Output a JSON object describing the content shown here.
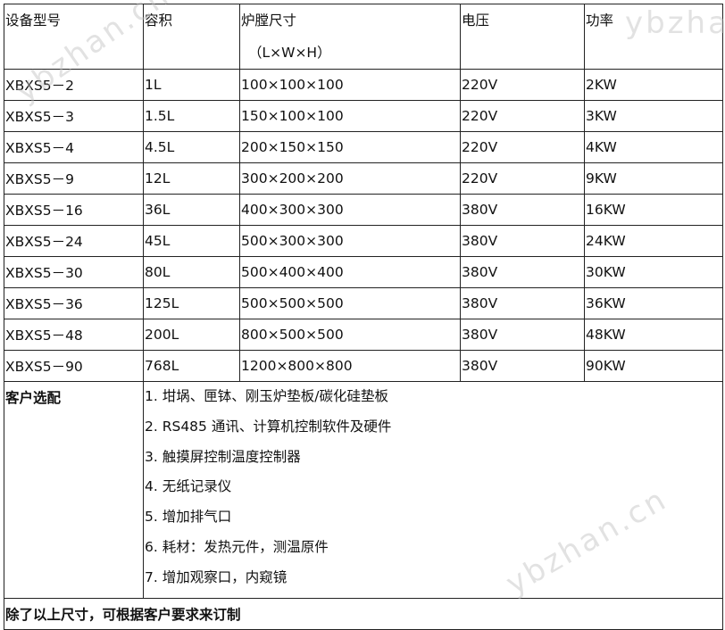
{
  "watermark": "ybzhan.cn",
  "header": {
    "model": "设备型号",
    "volume": "容积",
    "chamber": "炉膛尺寸",
    "chamber_sub": "（L×W×H）",
    "voltage": "电压",
    "power": "功率"
  },
  "rows": [
    {
      "model": "XBXS5－2",
      "volume": "1L",
      "size": "100×100×100",
      "voltage": "220V",
      "power": "2KW"
    },
    {
      "model": "XBXS5－3",
      "volume": "1.5L",
      "size": "150×100×100",
      "voltage": "220V",
      "power": "3KW"
    },
    {
      "model": "XBXS5－4",
      "volume": "4.5L",
      "size": "200×150×150",
      "voltage": "220V",
      "power": "4KW"
    },
    {
      "model": "XBXS5－9",
      "volume": "12L",
      "size": "300×200×200",
      "voltage": "220V",
      "power": "9KW"
    },
    {
      "model": "XBXS5－16",
      "volume": "36L",
      "size": "400×300×300",
      "voltage": "380V",
      "power": "16KW"
    },
    {
      "model": "XBXS5－24",
      "volume": "45L",
      "size": "500×300×300",
      "voltage": "380V",
      "power": "24KW"
    },
    {
      "model": "XBXS5－30",
      "volume": "80L",
      "size": "500×400×400",
      "voltage": "380V",
      "power": "30KW"
    },
    {
      "model": "XBXS5－36",
      "volume": "125L",
      "size": "500×500×500",
      "voltage": "380V",
      "power": "36KW"
    },
    {
      "model": "XBXS5－48",
      "volume": "200L",
      "size": "800×500×500",
      "voltage": "380V",
      "power": "48KW"
    },
    {
      "model": "XBXS5－90",
      "volume": "768L",
      "size": "1200×800×800",
      "voltage": "380V",
      "power": "90KW"
    }
  ],
  "options": {
    "label": "客户选配",
    "items": [
      "1. 坩埚、匣钵、刚玉炉垫板/碳化硅垫板",
      "2. RS485 通讯、计算机控制软件及硬件",
      "3. 触摸屏控制温度控制器",
      "4. 无纸记录仪",
      "5. 增加排气口",
      "6. 耗材：发热元件，测温原件",
      "7. 增加观察口，内窥镜"
    ]
  },
  "footer": "除了以上尺寸，可根据客户要求来订制"
}
